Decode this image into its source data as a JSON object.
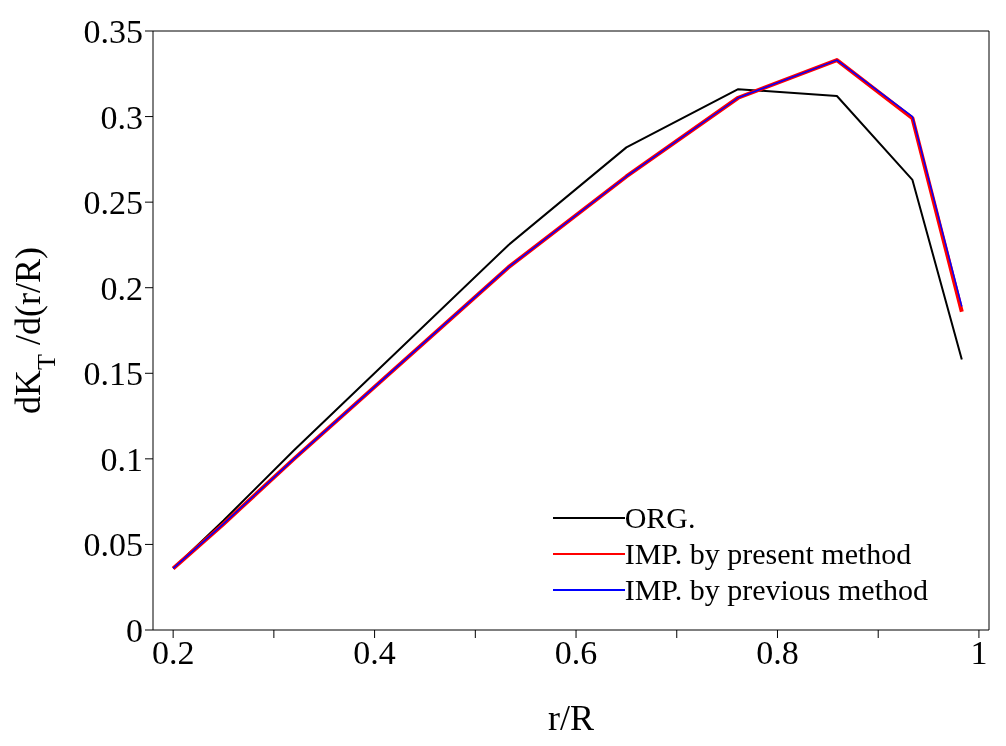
{
  "chart_data": {
    "type": "line",
    "xlabel": "r/R",
    "ylabel": "dK$_{T}$/d(r/R)",
    "xlim": [
      0.18,
      1.01
    ],
    "xticks": [
      0.2,
      {
        "value": 0.3,
        "label": null
      },
      0.4,
      {
        "value": 0.5,
        "label": null
      },
      0.6,
      {
        "value": 0.7,
        "label": null
      },
      0.8,
      {
        "value": 0.9,
        "label": null
      },
      1
    ],
    "ylim": [
      0,
      0.35
    ],
    "yticks": [
      0,
      0.05,
      0.1,
      0.15,
      0.2,
      0.25,
      0.3,
      0.35
    ],
    "grid": false,
    "legend": "bottom right",
    "marker": "none",
    "line_style": "solid",
    "x": [
      0.2,
      0.25,
      0.32,
      0.533,
      0.65,
      0.761,
      0.859,
      0.934,
      0.983
    ],
    "series": [
      {
        "name": "ORG.",
        "color": "#000000",
        "values": [
          0.036,
          0.064,
          0.105,
          0.225,
          0.282,
          0.316,
          0.312,
          0.263,
          0.158
        ]
      },
      {
        "name": "IMP. by present method",
        "color": "#ff0000",
        "values": [
          0.036,
          0.062,
          0.1,
          0.212,
          0.265,
          0.311,
          0.333,
          0.299,
          0.186
        ]
      },
      {
        "name": "IMP. by previous method",
        "color": "#0000ff",
        "values": [
          0.036,
          0.062,
          0.1,
          0.212,
          0.265,
          0.311,
          0.333,
          0.3,
          0.189
        ]
      }
    ]
  }
}
